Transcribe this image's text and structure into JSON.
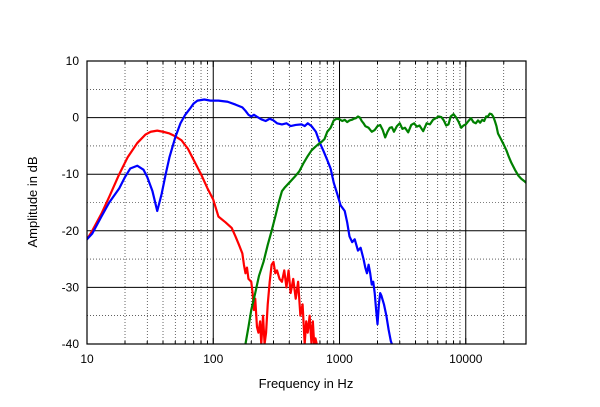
{
  "chart_data": {
    "type": "line",
    "title": "",
    "xlabel": "Frequency in Hz",
    "ylabel": "Amplitude in dB",
    "xscale": "log",
    "xlim": [
      10,
      30000
    ],
    "ylim": [
      -40,
      10
    ],
    "x_ticks": [
      10,
      100,
      1000,
      10000
    ],
    "x_tick_labels": [
      "10",
      "100",
      "1000",
      "10000"
    ],
    "y_ticks": [
      10,
      0,
      -10,
      -20,
      -30,
      -40
    ],
    "y_tick_labels": [
      "10",
      "0",
      "-10",
      "-20",
      "-30",
      "-40"
    ],
    "grid": true,
    "legend": "none",
    "series": [
      {
        "color": "#ff0000",
        "points": [
          [
            10,
            -21.5
          ],
          [
            11,
            -20
          ],
          [
            13,
            -17
          ],
          [
            15,
            -14
          ],
          [
            18,
            -10
          ],
          [
            21,
            -7
          ],
          [
            25,
            -4.5
          ],
          [
            29,
            -3
          ],
          [
            32,
            -2.5
          ],
          [
            36,
            -2.3
          ],
          [
            40,
            -2.5
          ],
          [
            45,
            -2.8
          ],
          [
            50,
            -3.3
          ],
          [
            56,
            -4
          ],
          [
            63,
            -5.5
          ],
          [
            70,
            -7.5
          ],
          [
            80,
            -10
          ],
          [
            90,
            -12.5
          ],
          [
            100,
            -14.5
          ],
          [
            110,
            -17.5
          ],
          [
            125,
            -18.5
          ],
          [
            140,
            -19.5
          ],
          [
            150,
            -21
          ],
          [
            160,
            -22.5
          ],
          [
            170,
            -24
          ],
          [
            175,
            -26
          ],
          [
            180,
            -27.5
          ],
          [
            185,
            -26.5
          ],
          [
            190,
            -28.5
          ],
          [
            200,
            -29
          ],
          [
            205,
            -31
          ],
          [
            210,
            -34
          ],
          [
            215,
            -32
          ],
          [
            222,
            -37
          ],
          [
            228,
            -38
          ],
          [
            235,
            -36
          ],
          [
            240,
            -40
          ],
          [
            248,
            -35
          ],
          [
            255,
            -40
          ],
          [
            262,
            -38
          ],
          [
            270,
            -33
          ],
          [
            280,
            -29
          ],
          [
            290,
            -26
          ],
          [
            300,
            -25.5
          ],
          [
            310,
            -27.5
          ],
          [
            320,
            -27
          ],
          [
            335,
            -28.5
          ],
          [
            350,
            -29
          ],
          [
            365,
            -27
          ],
          [
            380,
            -30
          ],
          [
            395,
            -27
          ],
          [
            410,
            -31
          ],
          [
            430,
            -28.5
          ],
          [
            450,
            -32
          ],
          [
            470,
            -29
          ],
          [
            490,
            -35
          ],
          [
            510,
            -33
          ],
          [
            530,
            -40
          ],
          [
            545,
            -36
          ],
          [
            560,
            -38
          ],
          [
            580,
            -35
          ],
          [
            600,
            -40
          ],
          [
            615,
            -36
          ],
          [
            630,
            -40
          ],
          [
            645,
            -39
          ],
          [
            660,
            -40
          ]
        ]
      },
      {
        "color": "#0000ff",
        "points": [
          [
            10,
            -21.5
          ],
          [
            11,
            -20.5
          ],
          [
            13,
            -17.5
          ],
          [
            15,
            -15
          ],
          [
            18,
            -12.5
          ],
          [
            20,
            -10.5
          ],
          [
            22,
            -9
          ],
          [
            25,
            -8.5
          ],
          [
            28,
            -9.2
          ],
          [
            30,
            -10.5
          ],
          [
            33,
            -13
          ],
          [
            36,
            -16.5
          ],
          [
            39,
            -13.5
          ],
          [
            42,
            -10
          ],
          [
            45,
            -7
          ],
          [
            50,
            -3.5
          ],
          [
            55,
            -1
          ],
          [
            60,
            0.5
          ],
          [
            65,
            1.5
          ],
          [
            70,
            2.5
          ],
          [
            75,
            3
          ],
          [
            85,
            3.2
          ],
          [
            95,
            3
          ],
          [
            110,
            3
          ],
          [
            130,
            2.8
          ],
          [
            150,
            2.3
          ],
          [
            170,
            1.8
          ],
          [
            180,
            1.2
          ],
          [
            190,
            0.5
          ],
          [
            200,
            0.2
          ],
          [
            210,
            0.5
          ],
          [
            220,
            0.2
          ],
          [
            240,
            -0.3
          ],
          [
            260,
            -0.6
          ],
          [
            280,
            -0.2
          ],
          [
            300,
            -0.5
          ],
          [
            320,
            -1
          ],
          [
            350,
            -1.2
          ],
          [
            380,
            -1
          ],
          [
            410,
            -1.5
          ],
          [
            450,
            -1.3
          ],
          [
            500,
            -1.2
          ],
          [
            530,
            -1.5
          ],
          [
            560,
            -1
          ],
          [
            600,
            -1.5
          ],
          [
            650,
            -2.5
          ],
          [
            700,
            -4.5
          ],
          [
            750,
            -6
          ],
          [
            800,
            -7.5
          ],
          [
            850,
            -9
          ],
          [
            900,
            -11.5
          ],
          [
            960,
            -13.5
          ],
          [
            1020,
            -15.5
          ],
          [
            1100,
            -16.5
          ],
          [
            1150,
            -18.5
          ],
          [
            1200,
            -21
          ],
          [
            1260,
            -22
          ],
          [
            1320,
            -21.5
          ],
          [
            1400,
            -23.5
          ],
          [
            1470,
            -23
          ],
          [
            1550,
            -25
          ],
          [
            1600,
            -26.5
          ],
          [
            1650,
            -27.5
          ],
          [
            1700,
            -26
          ],
          [
            1750,
            -27.5
          ],
          [
            1800,
            -29.5
          ],
          [
            1850,
            -29
          ],
          [
            1900,
            -31
          ],
          [
            1950,
            -34
          ],
          [
            2000,
            -36.5
          ],
          [
            2050,
            -33
          ],
          [
            2100,
            -31
          ],
          [
            2150,
            -31.5
          ],
          [
            2250,
            -33
          ],
          [
            2350,
            -35
          ],
          [
            2450,
            -37.5
          ],
          [
            2550,
            -39.5
          ],
          [
            2600,
            -40
          ]
        ]
      },
      {
        "color": "#008000",
        "points": [
          [
            180,
            -40
          ],
          [
            190,
            -37
          ],
          [
            200,
            -34
          ],
          [
            215,
            -31
          ],
          [
            230,
            -28
          ],
          [
            250,
            -25.5
          ],
          [
            270,
            -22.5
          ],
          [
            290,
            -20
          ],
          [
            310,
            -17.5
          ],
          [
            330,
            -15
          ],
          [
            350,
            -13
          ],
          [
            370,
            -12.3
          ],
          [
            400,
            -11.5
          ],
          [
            440,
            -10.5
          ],
          [
            480,
            -9.5
          ],
          [
            520,
            -8
          ],
          [
            560,
            -6.8
          ],
          [
            600,
            -5.8
          ],
          [
            640,
            -5.2
          ],
          [
            680,
            -4.7
          ],
          [
            720,
            -4.3
          ],
          [
            760,
            -3.8
          ],
          [
            800,
            -2.5
          ],
          [
            850,
            -1.8
          ],
          [
            900,
            -0.5
          ],
          [
            950,
            -0.2
          ],
          [
            1000,
            -0.3
          ],
          [
            1050,
            -0.6
          ],
          [
            1100,
            -0.4
          ],
          [
            1150,
            -0.8
          ],
          [
            1200,
            -0.5
          ],
          [
            1250,
            -0.4
          ],
          [
            1300,
            -0.2
          ],
          [
            1350,
            -0.1
          ],
          [
            1400,
            0.2
          ],
          [
            1450,
            0
          ],
          [
            1500,
            -0.6
          ],
          [
            1550,
            -1
          ],
          [
            1600,
            -1.5
          ],
          [
            1700,
            -1.8
          ],
          [
            1800,
            -2.5
          ],
          [
            1900,
            -2.2
          ],
          [
            2000,
            -1.5
          ],
          [
            2100,
            -1.3
          ],
          [
            2200,
            -2.2
          ],
          [
            2300,
            -3.5
          ],
          [
            2400,
            -2.5
          ],
          [
            2500,
            -1.8
          ],
          [
            2600,
            -1.7
          ],
          [
            2700,
            -2.5
          ],
          [
            2850,
            -1.5
          ],
          [
            3000,
            -1
          ],
          [
            3150,
            -2
          ],
          [
            3300,
            -1.8
          ],
          [
            3500,
            -2.6
          ],
          [
            3700,
            -1.3
          ],
          [
            3900,
            -1
          ],
          [
            4100,
            -1.6
          ],
          [
            4300,
            -1.4
          ],
          [
            4600,
            -2.4
          ],
          [
            4900,
            -1
          ],
          [
            5200,
            -1.2
          ],
          [
            5500,
            -0.4
          ],
          [
            5800,
            -0.1
          ],
          [
            6100,
            0.2
          ],
          [
            6400,
            0.1
          ],
          [
            6700,
            -0.5
          ],
          [
            7000,
            -1.4
          ],
          [
            7300,
            -1.2
          ],
          [
            7600,
            0.2
          ],
          [
            8000,
            0.6
          ],
          [
            8400,
            0
          ],
          [
            8800,
            -0.8
          ],
          [
            9200,
            -1.8
          ],
          [
            9600,
            -1.4
          ],
          [
            10000,
            -1.2
          ],
          [
            10500,
            -0.6
          ],
          [
            11000,
            -0.1
          ],
          [
            11500,
            -0.8
          ],
          [
            12000,
            -1
          ],
          [
            12500,
            -0.5
          ],
          [
            13000,
            -0.9
          ],
          [
            13500,
            -0.4
          ],
          [
            14000,
            -0.6
          ],
          [
            14500,
            0.2
          ],
          [
            15000,
            0.2
          ],
          [
            15500,
            0.7
          ],
          [
            16000,
            0.6
          ],
          [
            16500,
            0.2
          ],
          [
            17000,
            -0.6
          ],
          [
            17500,
            -1.5
          ],
          [
            18000,
            -2.8
          ],
          [
            19000,
            -3.8
          ],
          [
            20000,
            -4.8
          ],
          [
            21000,
            -5.8
          ],
          [
            22000,
            -7
          ],
          [
            23000,
            -8
          ],
          [
            24500,
            -9.2
          ],
          [
            26000,
            -10.2
          ],
          [
            27500,
            -10.8
          ],
          [
            29000,
            -11.2
          ],
          [
            30000,
            -11.5
          ]
        ]
      }
    ]
  }
}
